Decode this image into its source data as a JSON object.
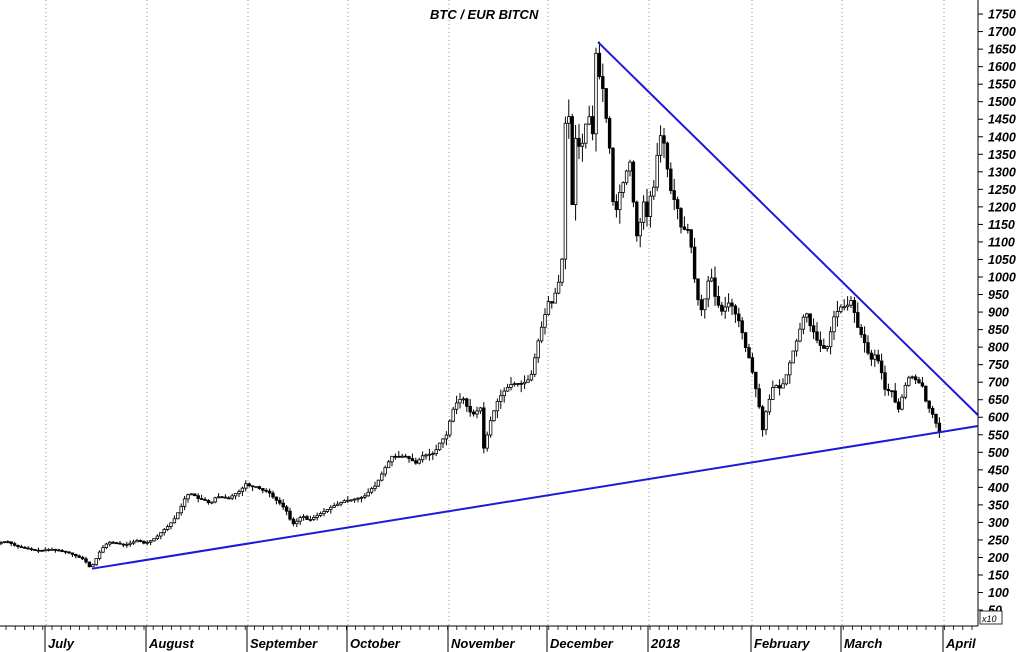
{
  "chart_data": {
    "type": "candlestick",
    "title": "BTC / EUR BITCN",
    "xlabel": "",
    "ylabel": "",
    "y_unit_multiplier": "x10",
    "ylim": [
      40,
      1780
    ],
    "y_ticks": [
      50,
      100,
      150,
      200,
      250,
      300,
      350,
      400,
      450,
      500,
      550,
      600,
      650,
      700,
      750,
      800,
      850,
      900,
      950,
      1000,
      1050,
      1100,
      1150,
      1200,
      1250,
      1300,
      1350,
      1400,
      1450,
      1500,
      1550,
      1600,
      1650,
      1700,
      1750
    ],
    "x_labels": [
      "July",
      "August",
      "September",
      "October",
      "November",
      "December",
      "2018",
      "February",
      "March",
      "April"
    ],
    "grid": "vertical dotted lines at month starts",
    "colors": {
      "price": "#000000",
      "trendlines": "#1a1ad9"
    },
    "price_path": [
      [
        0,
        240
      ],
      [
        8,
        247
      ],
      [
        18,
        232
      ],
      [
        28,
        226
      ],
      [
        36,
        221
      ],
      [
        44,
        220
      ],
      [
        52,
        224
      ],
      [
        62,
        219
      ],
      [
        70,
        214
      ],
      [
        78,
        204
      ],
      [
        86,
        194
      ],
      [
        92,
        170
      ],
      [
        96,
        185
      ],
      [
        100,
        210
      ],
      [
        104,
        226
      ],
      [
        110,
        244
      ],
      [
        118,
        241
      ],
      [
        126,
        235
      ],
      [
        134,
        243
      ],
      [
        140,
        250
      ],
      [
        146,
        240
      ],
      [
        152,
        247
      ],
      [
        158,
        258
      ],
      [
        164,
        275
      ],
      [
        170,
        290
      ],
      [
        176,
        310
      ],
      [
        182,
        340
      ],
      [
        188,
        378
      ],
      [
        194,
        382
      ],
      [
        200,
        368
      ],
      [
        206,
        364
      ],
      [
        212,
        353
      ],
      [
        218,
        374
      ],
      [
        224,
        372
      ],
      [
        230,
        368
      ],
      [
        236,
        380
      ],
      [
        242,
        390
      ],
      [
        248,
        412
      ],
      [
        252,
        402
      ],
      [
        258,
        402
      ],
      [
        264,
        392
      ],
      [
        270,
        388
      ],
      [
        276,
        368
      ],
      [
        282,
        354
      ],
      [
        288,
        334
      ],
      [
        294,
        294
      ],
      [
        298,
        302
      ],
      [
        304,
        320
      ],
      [
        310,
        305
      ],
      [
        316,
        315
      ],
      [
        322,
        325
      ],
      [
        328,
        335
      ],
      [
        334,
        346
      ],
      [
        340,
        353
      ],
      [
        346,
        362
      ],
      [
        352,
        364
      ],
      [
        358,
        368
      ],
      [
        364,
        372
      ],
      [
        368,
        378
      ],
      [
        372,
        395
      ],
      [
        376,
        400
      ],
      [
        382,
        430
      ],
      [
        388,
        462
      ],
      [
        394,
        490
      ],
      [
        400,
        487
      ],
      [
        406,
        490
      ],
      [
        412,
        480
      ],
      [
        418,
        468
      ],
      [
        424,
        490
      ],
      [
        430,
        494
      ],
      [
        436,
        497
      ],
      [
        442,
        530
      ],
      [
        448,
        548
      ],
      [
        454,
        618
      ],
      [
        460,
        650
      ],
      [
        466,
        653
      ],
      [
        470,
        618
      ],
      [
        476,
        608
      ],
      [
        482,
        630
      ],
      [
        486,
        495
      ],
      [
        490,
        570
      ],
      [
        494,
        605
      ],
      [
        500,
        652
      ],
      [
        506,
        675
      ],
      [
        512,
        693
      ],
      [
        518,
        697
      ],
      [
        524,
        695
      ],
      [
        530,
        707
      ],
      [
        534,
        727
      ],
      [
        538,
        795
      ],
      [
        542,
        843
      ],
      [
        546,
        885
      ],
      [
        550,
        930
      ],
      [
        554,
        925
      ],
      [
        558,
        965
      ],
      [
        562,
        1000
      ],
      [
        564,
        1060
      ],
      [
        566,
        1400
      ],
      [
        568,
        1470
      ],
      [
        570,
        1500
      ],
      [
        572,
        1330
      ],
      [
        574,
        1200
      ],
      [
        576,
        1350
      ],
      [
        578,
        1420
      ],
      [
        582,
        1350
      ],
      [
        586,
        1410
      ],
      [
        590,
        1480
      ],
      [
        594,
        1380
      ],
      [
        596,
        1570
      ],
      [
        598,
        1650
      ],
      [
        600,
        1580
      ],
      [
        604,
        1550
      ],
      [
        608,
        1450
      ],
      [
        612,
        1350
      ],
      [
        616,
        1150
      ],
      [
        620,
        1230
      ],
      [
        624,
        1260
      ],
      [
        628,
        1300
      ],
      [
        632,
        1330
      ],
      [
        636,
        1180
      ],
      [
        640,
        1080
      ],
      [
        644,
        1240
      ],
      [
        648,
        1160
      ],
      [
        652,
        1230
      ],
      [
        656,
        1260
      ],
      [
        660,
        1380
      ],
      [
        664,
        1420
      ],
      [
        668,
        1330
      ],
      [
        672,
        1250
      ],
      [
        676,
        1220
      ],
      [
        680,
        1190
      ],
      [
        684,
        1120
      ],
      [
        688,
        1150
      ],
      [
        692,
        1110
      ],
      [
        696,
        1000
      ],
      [
        700,
        930
      ],
      [
        704,
        900
      ],
      [
        708,
        960
      ],
      [
        712,
        1020
      ],
      [
        716,
        950
      ],
      [
        720,
        920
      ],
      [
        724,
        900
      ],
      [
        728,
        920
      ],
      [
        732,
        930
      ],
      [
        736,
        900
      ],
      [
        740,
        880
      ],
      [
        744,
        840
      ],
      [
        748,
        790
      ],
      [
        752,
        760
      ],
      [
        756,
        700
      ],
      [
        760,
        650
      ],
      [
        764,
        560
      ],
      [
        768,
        620
      ],
      [
        772,
        660
      ],
      [
        776,
        700
      ],
      [
        780,
        680
      ],
      [
        784,
        690
      ],
      [
        788,
        720
      ],
      [
        792,
        760
      ],
      [
        796,
        800
      ],
      [
        800,
        830
      ],
      [
        804,
        880
      ],
      [
        808,
        900
      ],
      [
        812,
        860
      ],
      [
        816,
        840
      ],
      [
        820,
        810
      ],
      [
        824,
        800
      ],
      [
        828,
        790
      ],
      [
        832,
        840
      ],
      [
        836,
        890
      ],
      [
        840,
        905
      ],
      [
        844,
        920
      ],
      [
        848,
        910
      ],
      [
        852,
        940
      ],
      [
        856,
        900
      ],
      [
        860,
        850
      ],
      [
        864,
        830
      ],
      [
        868,
        800
      ],
      [
        872,
        760
      ],
      [
        876,
        780
      ],
      [
        880,
        760
      ],
      [
        884,
        720
      ],
      [
        888,
        660
      ],
      [
        892,
        690
      ],
      [
        896,
        650
      ],
      [
        900,
        620
      ],
      [
        904,
        660
      ],
      [
        908,
        700
      ],
      [
        912,
        720
      ],
      [
        916,
        710
      ],
      [
        920,
        700
      ],
      [
        924,
        690
      ],
      [
        928,
        640
      ],
      [
        932,
        620
      ],
      [
        936,
        600
      ],
      [
        940,
        560
      ]
    ],
    "trendline_support": [
      [
        92,
        168
      ],
      [
        978,
        575
      ]
    ],
    "trendline_resistance": [
      [
        598,
        1670
      ],
      [
        978,
        606
      ]
    ]
  }
}
